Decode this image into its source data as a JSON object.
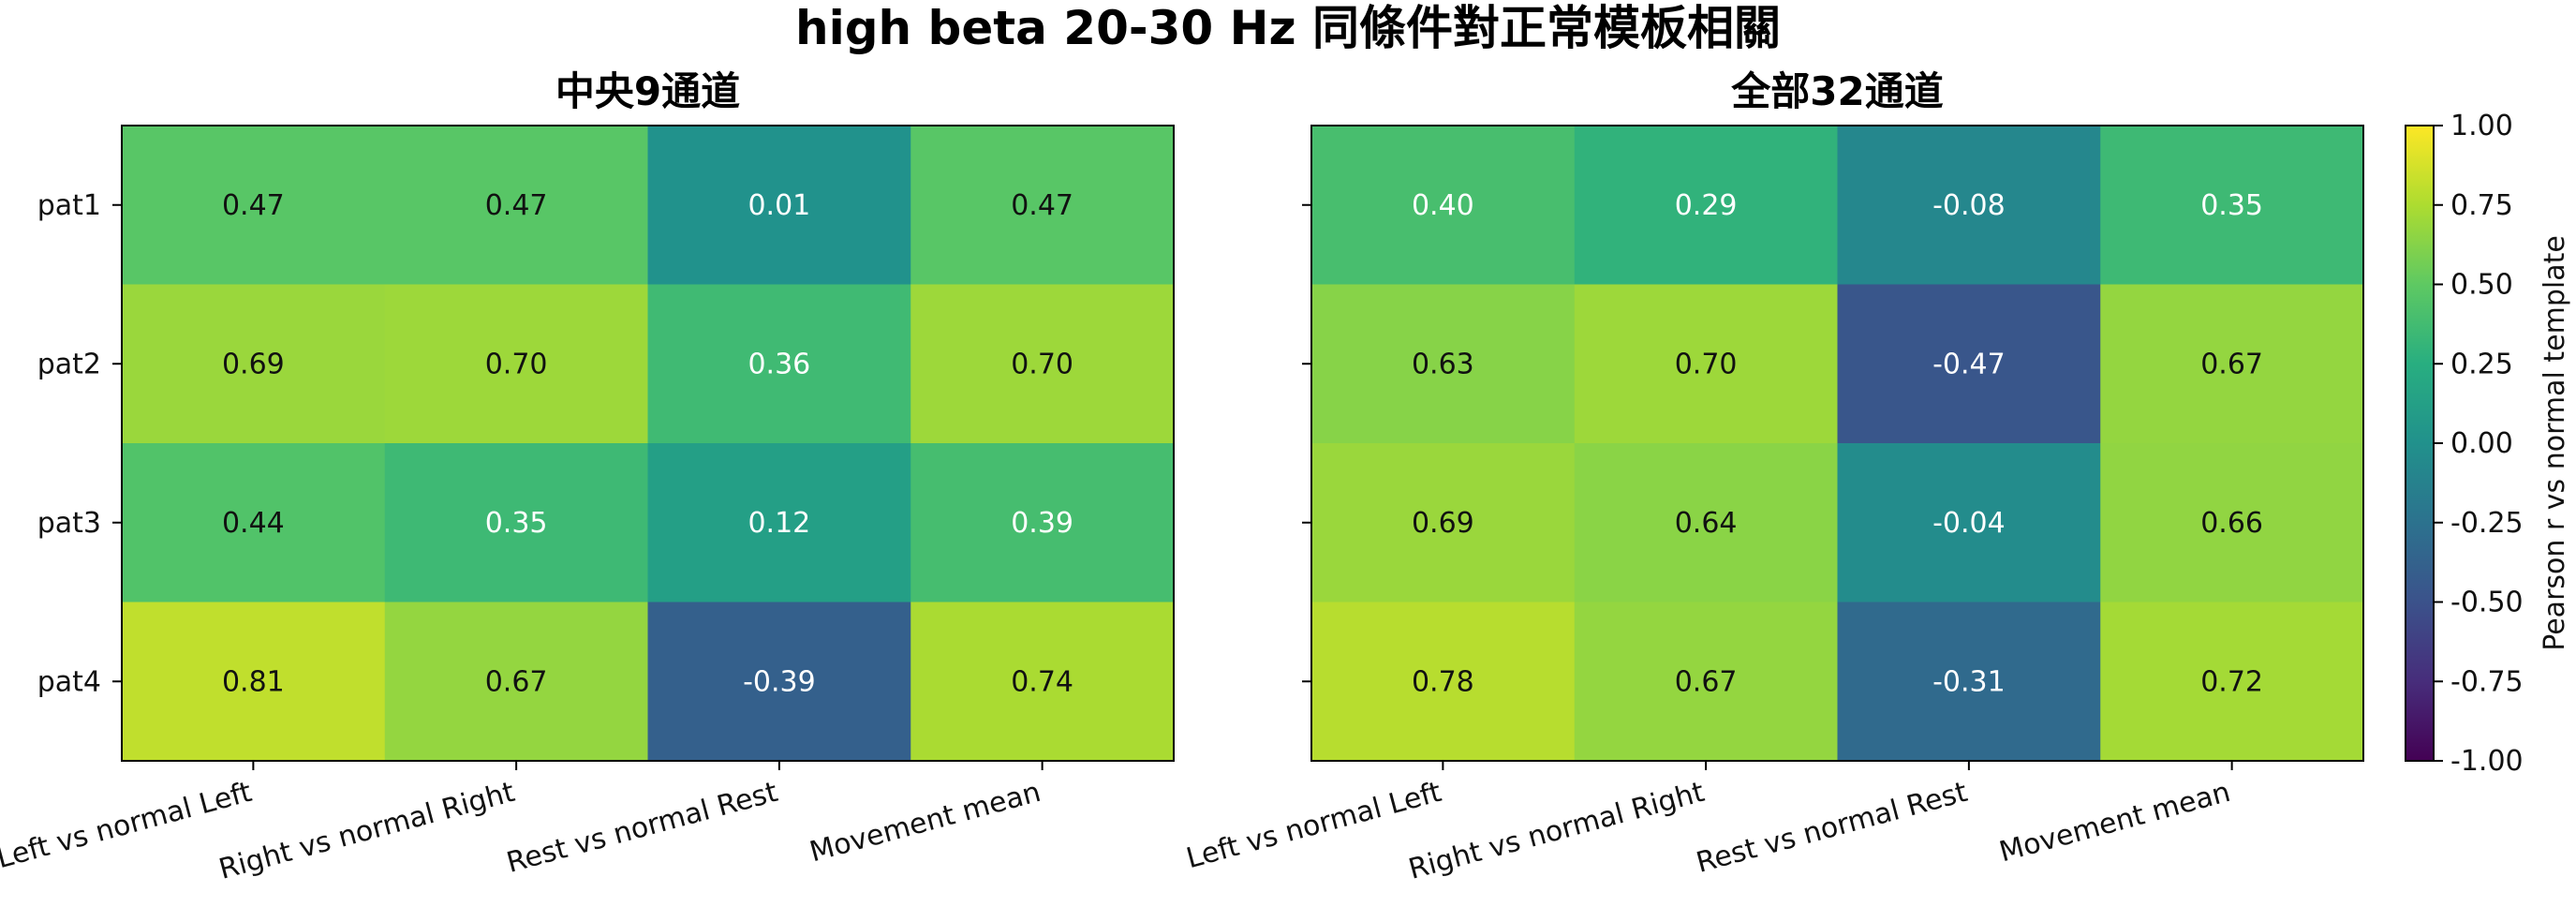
{
  "title": "high beta 20-30 Hz 同條件對正常模板相關",
  "chart_data": [
    {
      "type": "heatmap",
      "title": "中央9通道",
      "x_categories": [
        "Left vs normal Left",
        "Right vs normal Right",
        "Rest vs normal Rest",
        "Movement mean"
      ],
      "y_categories": [
        "pat1",
        "pat2",
        "pat3",
        "pat4"
      ],
      "values": [
        [
          0.47,
          0.47,
          0.01,
          0.47
        ],
        [
          0.69,
          0.7,
          0.36,
          0.7
        ],
        [
          0.44,
          0.35,
          0.12,
          0.39
        ],
        [
          0.81,
          0.67,
          -0.39,
          0.74
        ]
      ]
    },
    {
      "type": "heatmap",
      "title": "全部32通道",
      "x_categories": [
        "Left vs normal Left",
        "Right vs normal Right",
        "Rest vs normal Rest",
        "Movement mean"
      ],
      "y_categories": [
        "pat1",
        "pat2",
        "pat3",
        "pat4"
      ],
      "values": [
        [
          0.4,
          0.29,
          -0.08,
          0.35
        ],
        [
          0.63,
          0.7,
          -0.47,
          0.67
        ],
        [
          0.69,
          0.64,
          -0.04,
          0.66
        ],
        [
          0.78,
          0.67,
          -0.31,
          0.72
        ]
      ]
    }
  ],
  "colorbar": {
    "label": "Pearson r vs normal template",
    "range": [
      -1.0,
      1.0
    ],
    "ticks": [
      "1.00",
      "0.75",
      "0.50",
      "0.25",
      "0.00",
      "-0.25",
      "-0.50",
      "-0.75",
      "-1.00"
    ],
    "colormap": "viridis"
  }
}
